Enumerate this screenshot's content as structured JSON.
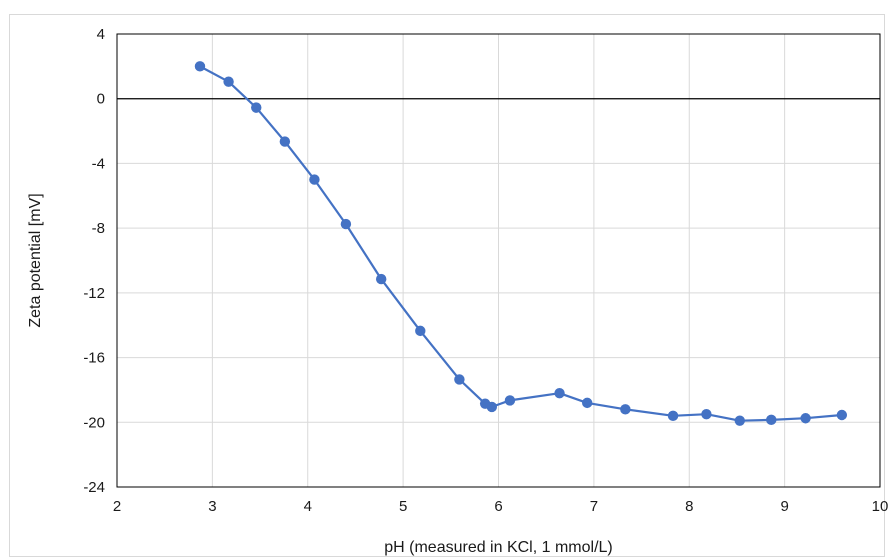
{
  "chart_data": {
    "type": "line",
    "title": "",
    "xlabel": "pH (measured in KCl, 1 mmol/L)",
    "ylabel": "Zeta potential [mV]",
    "xlim": [
      2,
      10
    ],
    "ylim": [
      -24,
      4
    ],
    "x_ticks": [
      2,
      3,
      4,
      5,
      6,
      7,
      8,
      9,
      10
    ],
    "y_ticks": [
      -24,
      -20,
      -16,
      -12,
      -8,
      -4,
      0,
      4
    ],
    "grid": true,
    "legend": "none",
    "colors": {
      "series": "#4472c4",
      "grid": "#d9d9d9",
      "zero_line": "#000000"
    },
    "series": [
      {
        "x": [
          2.87,
          3.17,
          3.46,
          3.76,
          4.07,
          4.4,
          4.77,
          5.18,
          5.59,
          5.86,
          5.93,
          6.12,
          6.64,
          6.93,
          7.33,
          7.83,
          8.18,
          8.53,
          8.86,
          9.22,
          9.6
        ],
        "y": [
          2.0,
          1.05,
          -0.55,
          -2.65,
          -5.0,
          -7.75,
          -11.15,
          -14.35,
          -17.35,
          -18.85,
          -19.05,
          -18.65,
          -18.2,
          -18.8,
          -19.2,
          -19.6,
          -19.5,
          -19.9,
          -19.85,
          -19.75,
          -19.55
        ]
      }
    ]
  }
}
